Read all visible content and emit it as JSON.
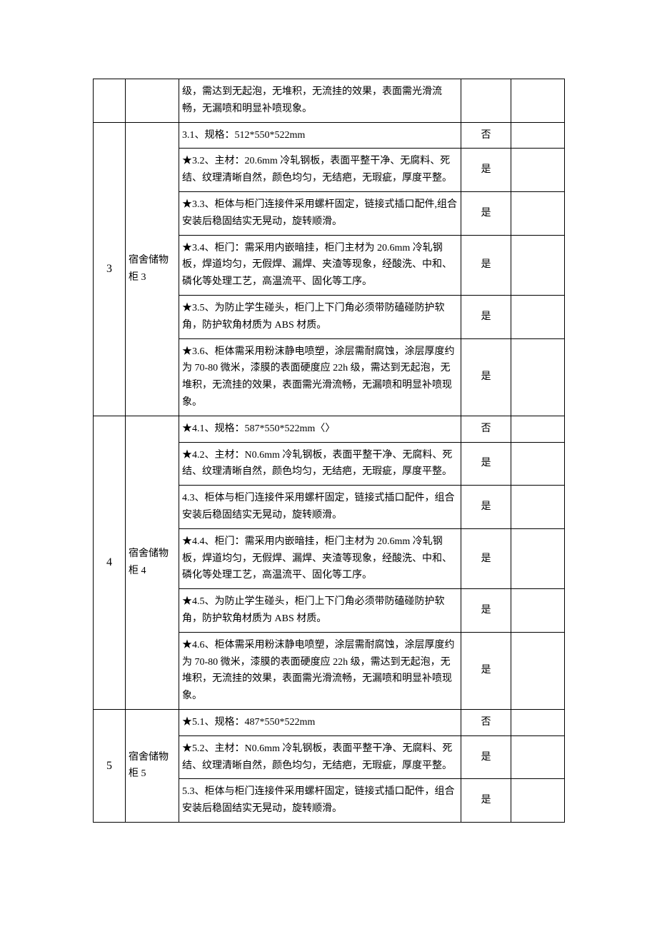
{
  "colors": {
    "border": "#000000",
    "background": "#ffffff",
    "text": "#000000"
  },
  "font": {
    "body_family": "SimSun",
    "body_size_pt": 10.5,
    "idx_family": "Times New Roman"
  },
  "flags": {
    "yes": "是",
    "no": "否"
  },
  "groups": [
    {
      "idx": "",
      "name": "",
      "head_rowspan": 0,
      "rows": [
        {
          "spec": "级，需达到无起泡，无堆积，无流挂的效果，表面需光滑流畅，无漏喷和明显补喷现象。",
          "flag": ""
        }
      ]
    },
    {
      "idx": "3",
      "name": "宿舍储物柜 3",
      "head_rowspan": 6,
      "rows": [
        {
          "spec": "3.1、规格：512*550*522mm",
          "flag": "否"
        },
        {
          "spec": "★3.2、主材：20.6mm 冷轧钢板，表面平整干净、无腐料、死结、纹理清晰自然，颜色均匀，无结疤，无瑕疵，厚度平整。",
          "flag": "是"
        },
        {
          "spec": "★3.3、柜体与柜门连接件采用螺杆固定，链接式插口配件,组合安装后稳固结实无晃动，旋转顺滑。",
          "flag": "是"
        },
        {
          "spec": "★3.4、柜门：需采用内嵌暗挂，柜门主材为 20.6mm 冷轧钢板，焊道均匀，无假焊、漏焊、夹渣等现象，经酸洗、中和、磷化等处理工艺，高温流平、固化等工序。",
          "flag": "是"
        },
        {
          "spec": "★3.5、为防止学生碰头，柜门上下门角必须带防磕碰防护软角，防护软角材质为 ABS 材质。",
          "flag": "是"
        },
        {
          "spec": "★3.6、柜体需采用粉沫静电喷塑，涂层需耐腐蚀，涂层厚度约为 70-80 微米，漆膜的表面硬度应 22h 级，需达到无起泡，无堆积，无流挂的效果，表面需光滑流畅，无漏喷和明显补喷现象。",
          "flag": "是"
        }
      ]
    },
    {
      "idx": "4",
      "name": "宿舍储物柜 4",
      "head_rowspan": 6,
      "rows": [
        {
          "spec": "★4.1、规格：587*550*522mm〈〉",
          "flag": "否"
        },
        {
          "spec": "★4.2、主材：N0.6mm 冷轧钢板，表面平整干净、无腐料、死结、纹理清晰自然，颜色均匀，无结疤，无瑕疵，厚度平整。",
          "flag": "是"
        },
        {
          "spec": "4.3、柜体与柜门连接件采用螺杆固定，链接式插口配件，组合安装后稳固结实无晃动，旋转顺滑。",
          "flag": "是"
        },
        {
          "spec": "★4.4、柜门：需采用内嵌暗挂，柜门主材为 20.6mm 冷轧钢板，焊道均匀，无假焊、漏焊、夹渣等现象，经酸洗、中和、磷化等处理工艺，高温流平、固化等工序。",
          "flag": "是"
        },
        {
          "spec": "★4.5、为防止学生碰头，柜门上下门角必须带防磕碰防护软角，防护软角材质为 ABS 材质。",
          "flag": "是"
        },
        {
          "spec": "★4.6、柜体需采用粉沫静电喷塑，涂层需耐腐蚀，涂层厚度约为 70-80 微米，漆膜的表面硬度应 22h 级，需达到无起泡，无堆积，无流挂的效果，表面需光滑流畅，无漏喷和明显补喷现象。",
          "flag": "是"
        }
      ]
    },
    {
      "idx": "5",
      "name": "宿舍储物柜 5",
      "head_rowspan": 3,
      "rows": [
        {
          "spec": "★5.1、规格：487*550*522mm",
          "flag": "否"
        },
        {
          "spec": "★5.2、主材：N0.6mm 冷轧钢板，表面平整干净、无腐料、死结、纹理清晰自然，颜色均匀，无结疤，无瑕疵，厚度平整。",
          "flag": "是"
        },
        {
          "spec": "5.3、柜体与柜门连接件采用螺杆固定，链接式插口配件，组合安装后稳固结实无晃动，旋转顺滑。",
          "flag": "是"
        }
      ]
    }
  ]
}
